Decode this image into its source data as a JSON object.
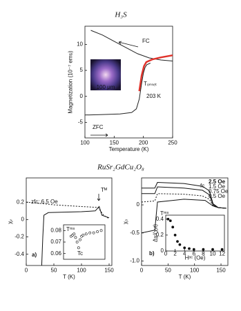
{
  "chart_data": [
    {
      "type": "line",
      "title": "H₃S",
      "xlabel": "Temperature (K)",
      "ylabel": "Magnetization (10⁻⁷ emu)",
      "xlim": [
        100,
        250
      ],
      "ylim": [
        -8,
        13.5
      ],
      "xticks": [
        100,
        150,
        200,
        250
      ],
      "yticks": [
        -5,
        0,
        5,
        10
      ],
      "series": [
        {
          "color": "#222222",
          "x": [
            110,
            130,
            150,
            170,
            190,
            210,
            230,
            250
          ],
          "values": [
            12.7,
            11.8,
            10.6,
            9.4,
            8.2,
            7.4,
            7.0,
            6.8
          ]
        },
        {
          "color": "#e0332b",
          "x": [
            193,
            197,
            201,
            205,
            215,
            230,
            250
          ],
          "values": [
            1,
            4,
            5.8,
            6.6,
            7.1,
            7.5,
            7.9
          ]
        },
        {
          "color": "#222222",
          "x": [
            100,
            130,
            160,
            180,
            188,
            193,
            197,
            200,
            203,
            206,
            212
          ],
          "values": [
            -3.6,
            -3.5,
            -3.4,
            -3.1,
            -2.4,
            -0.5,
            2.5,
            4.5,
            5.6,
            6.1,
            6.4
          ]
        }
      ],
      "annotations": [
        "FC",
        "Tₒₙₛₑₜ",
        "203 K",
        "ZFC",
        "100 μm"
      ]
    },
    {
      "type": "line",
      "title": "RuSr₂GdCu₂O₈",
      "xlabel": "T (K)",
      "ylabel": "χᵥ",
      "xlim": [
        0,
        155
      ],
      "ylim": [
        -0.53,
        0.48
      ],
      "xticks": [
        0,
        50,
        100,
        150
      ],
      "yticks": [
        -0.4,
        -0.2,
        0,
        0.2
      ],
      "series": [
        {
          "color": "#111111",
          "x": [
            28,
            30,
            32,
            40,
            100,
            125,
            132,
            137,
            150
          ],
          "values": [
            -0.53,
            -0.2,
            0.05,
            0.08,
            0.09,
            0.1,
            0.15,
            0.05,
            0.02
          ]
        },
        {
          "color": "#111111",
          "dash": true,
          "x": [
            0,
            20,
            50,
            100,
            130,
            140,
            150
          ],
          "values": [
            0.2,
            0.19,
            0.17,
            0.15,
            0.14,
            0.05,
            0.01
          ]
        }
      ],
      "annotations": [
        "zfc; 6.5 Oe",
        "Tᴹ",
        "a)"
      ]
    },
    {
      "type": "scatter",
      "marker": "open",
      "xlim": [
        20,
        75
      ],
      "ylim": [
        0.055,
        0.085
      ],
      "yticks": [
        0.06,
        0.07,
        0.08
      ],
      "series": [
        {
          "color": "#111111",
          "x": [
            30,
            32,
            34,
            36,
            38,
            40,
            42,
            44,
            46,
            50,
            55,
            60,
            65,
            70
          ],
          "values": [
            0.075,
            0.076,
            0.077,
            0.074,
            0.07,
            0.065,
            0.072,
            0.075,
            0.076,
            0.077,
            0.078,
            0.078,
            0.079,
            0.08
          ]
        }
      ],
      "annotations": [
        "Tᵐˢ",
        "Tc"
      ]
    },
    {
      "type": "line",
      "xlabel": "T (K)",
      "ylabel": "χ₀",
      "xlim": [
        0,
        163
      ],
      "ylim": [
        -1.08,
        0.48
      ],
      "xticks": [
        0,
        50,
        100,
        150
      ],
      "yticks": [
        {
          "value": -1,
          "label": "-1.0"
        },
        -0.5,
        0
      ],
      "legend": "upper right",
      "series": [
        {
          "name": "2.5 Oe",
          "color": "#111111",
          "x": [
            0,
            25,
            30,
            80,
            115,
            128,
            135,
            145,
            160
          ],
          "values": [
            0.3,
            0.3,
            0.4,
            0.38,
            0.33,
            0.25,
            0.02,
            -0.05,
            -0.06
          ]
        },
        {
          "name": "1.5 Oe",
          "color": "#111111",
          "x": [
            0,
            25,
            30,
            80,
            115,
            128,
            135,
            145,
            160
          ],
          "values": [
            0.2,
            0.2,
            0.32,
            0.3,
            0.26,
            0.18,
            0.0,
            -0.05,
            -0.06
          ]
        },
        {
          "name": "0.75 Oe",
          "color": "#111111",
          "dash": true,
          "x": [
            0,
            25,
            30,
            80,
            115,
            128,
            135,
            145,
            160
          ],
          "values": [
            0.05,
            0.07,
            0.2,
            0.19,
            0.16,
            0.1,
            -0.02,
            -0.05,
            -0.06
          ]
        },
        {
          "name": "0.5 Oe",
          "color": "#111111",
          "x": [
            0,
            25,
            30,
            80,
            120,
            135,
            145,
            160
          ],
          "values": [
            -0.5,
            -0.45,
            0.05,
            0.1,
            0.08,
            -0.02,
            -0.05,
            -0.06
          ]
        }
      ],
      "annotations": [
        "fc",
        "Tᵐˢ",
        "b)"
      ]
    },
    {
      "type": "scatter",
      "marker": "filled",
      "xlabel": "Hᵃᶜ (Oe)",
      "ylabel": "Δχ/(χᵥt)",
      "xlim": [
        0,
        12.5
      ],
      "ylim": [
        0,
        0.45
      ],
      "xticks": [
        0,
        2,
        4,
        6,
        8,
        10,
        12
      ],
      "yticks": [
        0,
        0.2,
        0.4
      ],
      "series": [
        {
          "color": "#111111",
          "x": [
            0.5,
            1,
            1.5,
            2,
            2.5,
            3,
            4,
            5,
            6,
            8,
            10,
            12
          ],
          "values": [
            0.4,
            0.38,
            0.3,
            0.2,
            0.12,
            0.08,
            0.04,
            0.03,
            0.02,
            0.02,
            0.02,
            0.02
          ]
        }
      ]
    }
  ]
}
